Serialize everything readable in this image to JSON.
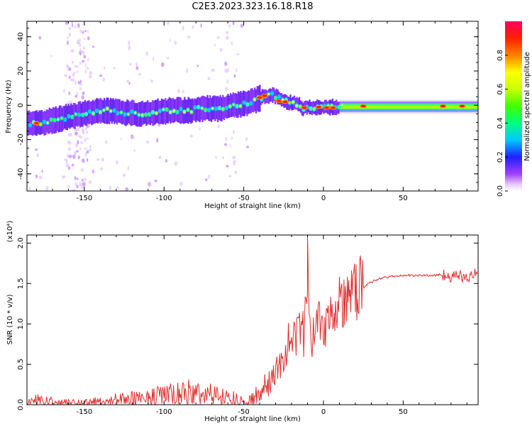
{
  "title": "C2E3.2023.323.16.18.R18",
  "chart_data": [
    {
      "type": "heatmap",
      "name": "spectrogram",
      "xlabel": "Height of straight line (km)",
      "ylabel": "Frequency (Hz)",
      "xlim": [
        -186,
        97
      ],
      "ylim": [
        -50,
        49
      ],
      "xticks": [
        -150,
        -100,
        -50,
        0,
        50
      ],
      "yticks": [
        -40,
        -20,
        0,
        20,
        40
      ],
      "ridge_frequency": {
        "x": [
          -186,
          -176,
          -166,
          -156,
          -146,
          -136,
          -126,
          -116,
          -106,
          -96,
          -86,
          -76,
          -66,
          -56,
          -46,
          -38,
          -32,
          -26,
          -20,
          -16,
          -14,
          -10,
          -4,
          0,
          4,
          10,
          20,
          30,
          40,
          50,
          60,
          70,
          80,
          90,
          97
        ],
        "y": [
          -11,
          -10,
          -8,
          -6,
          -4,
          -3,
          -4,
          -5,
          -4,
          -3,
          -3,
          -2,
          -2,
          0,
          2,
          5,
          6,
          3,
          1,
          1,
          -2,
          -1,
          -1,
          -1,
          -1,
          -1,
          0,
          0,
          0,
          0,
          0,
          0,
          0,
          0,
          0
        ]
      },
      "colorbar": {
        "label": "Normalized spectral amplitude",
        "range": [
          0,
          1
        ],
        "ticks": [
          "0.0",
          "0.2",
          "0.4",
          "0.6",
          "0.8"
        ]
      }
    },
    {
      "type": "line",
      "name": "snr",
      "xlabel": "Height of straight line (km)",
      "ylabel": "SNR (10 * v/v)",
      "y_multiplier": "(x10⁴)",
      "xlim": [
        -186,
        97
      ],
      "ylim": [
        0,
        2.1
      ],
      "xticks": [
        -150,
        -100,
        -50,
        0,
        50
      ],
      "yticks": [
        "0.0",
        "0.5",
        "1.0",
        "1.5",
        "2.0"
      ],
      "color": "#e03030",
      "series": [
        {
          "x": [
            -186,
            -180,
            -175,
            -170,
            -160,
            -150,
            -140,
            -130,
            -120,
            -110,
            -100,
            -90,
            -85,
            -80,
            -75,
            -70,
            -65,
            -60,
            -55,
            -50,
            -45,
            -40,
            -35,
            -30,
            -27,
            -25,
            -22,
            -20,
            -18,
            -15,
            -12,
            -10,
            -8,
            -5,
            -2,
            0,
            3,
            5,
            8,
            10,
            12,
            15,
            18,
            20,
            25,
            30,
            35,
            40,
            50,
            60,
            70,
            75,
            80,
            85,
            90,
            95,
            97
          ],
          "y": [
            0.04,
            0.06,
            0.05,
            0.03,
            0.02,
            0.03,
            0.04,
            0.06,
            0.07,
            0.09,
            0.12,
            0.13,
            0.15,
            0.14,
            0.12,
            0.13,
            0.11,
            0.09,
            0.07,
            0.03,
            0.05,
            0.15,
            0.25,
            0.38,
            0.55,
            0.45,
            0.75,
            0.62,
            0.8,
            1.0,
            0.85,
            1.6,
            0.7,
            1.05,
            1.15,
            0.95,
            1.1,
            1.25,
            1.18,
            1.3,
            1.2,
            1.35,
            1.32,
            1.42,
            1.45,
            1.52,
            1.56,
            1.58,
            1.6,
            1.6,
            1.6,
            1.61,
            1.58,
            1.6,
            1.56,
            1.62,
            1.55
          ]
        }
      ]
    }
  ]
}
